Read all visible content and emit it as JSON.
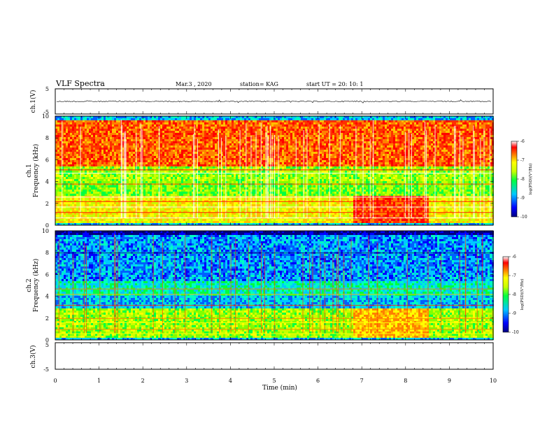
{
  "header": {
    "title": "VLF Spectra",
    "date": "Mar.3 , 2020",
    "station": "station= KAG",
    "start": "start UT = 20: 10: 1"
  },
  "chart_data": [
    {
      "type": "line",
      "panel": "ch1-waveform",
      "ylabel": "ch.1(V)",
      "ylim": [
        -5,
        5
      ],
      "yticks": [
        "5",
        "-5"
      ],
      "xlim": [
        0,
        10
      ]
    },
    {
      "type": "heatmap",
      "panel": "ch1-spectrogram",
      "ylabel": "ch.1\nFrequency (kHz)",
      "ylim": [
        0,
        10
      ],
      "yticks": [
        "0",
        "2",
        "4",
        "6",
        "8",
        "10"
      ],
      "xlim": [
        0,
        10
      ],
      "colorbar": {
        "label": "log(PSD)(V²/Hz)",
        "range": [
          -10,
          -6
        ],
        "ticks": [
          "-6",
          "-7",
          "-8",
          "-9",
          "-10"
        ]
      }
    },
    {
      "type": "heatmap",
      "panel": "ch2-spectrogram",
      "ylabel": "ch.2\nFrequency (kHz)",
      "ylim": [
        0,
        10
      ],
      "yticks": [
        "0",
        "2",
        "4",
        "6",
        "8",
        "10"
      ],
      "xlim": [
        0,
        10
      ],
      "colorbar": {
        "label": "log(PSD)(V²/Hz)",
        "range": [
          -10,
          -6
        ],
        "ticks": [
          "-6",
          "-7",
          "-8",
          "-9",
          "-10"
        ]
      }
    },
    {
      "type": "line",
      "panel": "ch3-waveform",
      "ylabel": "ch.3(V)",
      "ylim": [
        -5,
        5
      ],
      "yticks": [
        "5",
        "-5"
      ],
      "xlim": [
        0,
        10
      ],
      "xlabel": "Time (min)",
      "xticks": [
        "0",
        "1",
        "2",
        "3",
        "4",
        "5",
        "6",
        "7",
        "8",
        "9",
        "10"
      ]
    }
  ]
}
